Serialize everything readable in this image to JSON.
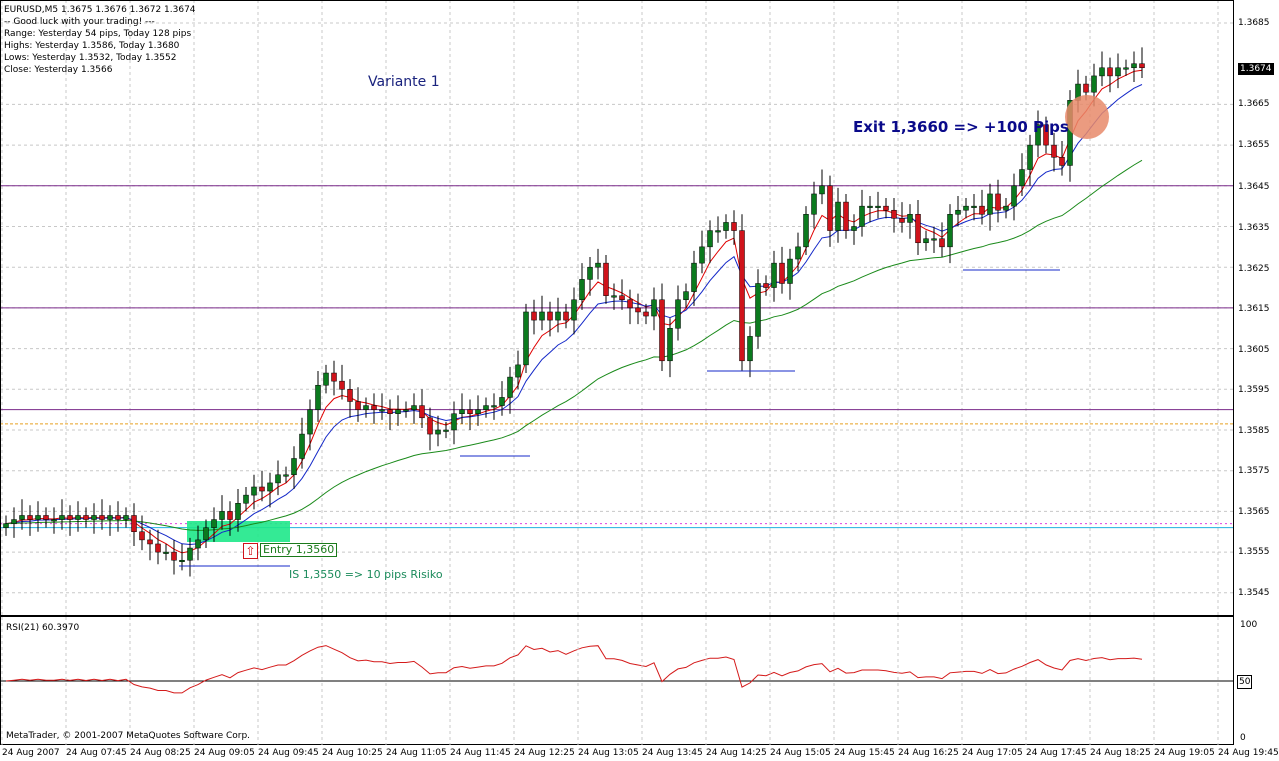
{
  "info_header": {
    "symbol_line": "EURUSD,M5  1.3675 1.3676 1.3672 1.3674",
    "lines": [
      "-- Good luck with your trading! ---",
      "Range: Yesterday 54 pips, Today 128 pips",
      "Highs: Yesterday 1.3586, Today 1.3680",
      "Lows:  Yesterday 1.3532, Today 1.3552",
      "Close: Yesterday 1.3566"
    ]
  },
  "annotations": {
    "variant": "Variante 1",
    "exit": "Exit 1,3660 => +100 Pips",
    "entry": "Entry 1,3560",
    "stop": "IS 1,3550 => 10 pips Risiko"
  },
  "price_axis": {
    "ticks": [
      "1.3685",
      "1.3665",
      "1.3655",
      "1.3645",
      "1.3635",
      "1.3625",
      "1.3615",
      "1.3605",
      "1.3595",
      "1.3585",
      "1.3575",
      "1.3565",
      "1.3555",
      "1.3545"
    ],
    "current": "1.3674"
  },
  "time_axis": {
    "ticks": [
      "24 Aug 2007",
      "24 Aug 07:45",
      "24 Aug 08:25",
      "24 Aug 09:05",
      "24 Aug 09:45",
      "24 Aug 10:25",
      "24 Aug 11:05",
      "24 Aug 11:45",
      "24 Aug 12:25",
      "24 Aug 13:05",
      "24 Aug 13:45",
      "24 Aug 14:25",
      "24 Aug 15:05",
      "24 Aug 15:45",
      "24 Aug 16:25",
      "24 Aug 17:05",
      "24 Aug 17:45",
      "24 Aug 18:25",
      "24 Aug 19:05",
      "24 Aug 19:45"
    ]
  },
  "rsi_panel": {
    "label": "RSI(21) 60.3970",
    "ticks": [
      "100",
      "50",
      "0"
    ]
  },
  "footer": {
    "copyright": "MetaTrader, © 2001-2007 MetaQuotes Software Corp."
  },
  "colors": {
    "bull": "#0b7a1e",
    "bear": "#d0131b",
    "ma_fast": "#e00000",
    "ma_mid": "#1428c8",
    "ma_slow": "#1a8a1a",
    "hline": "#7a2a8a",
    "rsi": "#d41a1a",
    "entry_zone": "#1ee88a",
    "exit_circle": "#e88a6a"
  },
  "chart_data": {
    "type": "candlestick",
    "y_range": [
      1.354,
      1.369
    ],
    "closes": [
      1.3562,
      1.3563,
      1.3564,
      1.3563,
      1.3564,
      1.3563,
      1.3563,
      1.3564,
      1.3563,
      1.3564,
      1.3563,
      1.3564,
      1.3563,
      1.3564,
      1.3563,
      1.3564,
      1.356,
      1.3558,
      1.3557,
      1.3555,
      1.3555,
      1.3553,
      1.3553,
      1.3556,
      1.3558,
      1.3561,
      1.3563,
      1.3565,
      1.3563,
      1.3567,
      1.3569,
      1.3571,
      1.357,
      1.3572,
      1.3574,
      1.3574,
      1.3578,
      1.3584,
      1.359,
      1.3596,
      1.3599,
      1.3597,
      1.3595,
      1.3592,
      1.359,
      1.3591,
      1.359,
      1.359,
      1.3589,
      1.359,
      1.359,
      1.3591,
      1.3588,
      1.3584,
      1.3585,
      1.3585,
      1.3589,
      1.359,
      1.3589,
      1.359,
      1.3591,
      1.3591,
      1.3593,
      1.3598,
      1.3601,
      1.3614,
      1.3612,
      1.3614,
      1.3612,
      1.3614,
      1.3612,
      1.3617,
      1.3622,
      1.3625,
      1.3626,
      1.3618,
      1.3618,
      1.3617,
      1.3615,
      1.3614,
      1.3613,
      1.3617,
      1.3602,
      1.361,
      1.3617,
      1.3619,
      1.3626,
      1.363,
      1.3634,
      1.3634,
      1.3636,
      1.3634,
      1.3602,
      1.3608,
      1.3621,
      1.362,
      1.3626,
      1.3621,
      1.3627,
      1.363,
      1.3638,
      1.3643,
      1.3645,
      1.3634,
      1.3641,
      1.3634,
      1.3635,
      1.364,
      1.364,
      1.364,
      1.3639,
      1.3637,
      1.3636,
      1.3638,
      1.3631,
      1.3632,
      1.3632,
      1.363,
      1.3638,
      1.3639,
      1.364,
      1.364,
      1.3638,
      1.3643,
      1.3639,
      1.364,
      1.3645,
      1.3649,
      1.3655,
      1.366,
      1.3655,
      1.3652,
      1.365,
      1.3666,
      1.367,
      1.3668,
      1.3672,
      1.3674,
      1.3672,
      1.3674,
      1.3674,
      1.3675,
      1.3674
    ]
  }
}
